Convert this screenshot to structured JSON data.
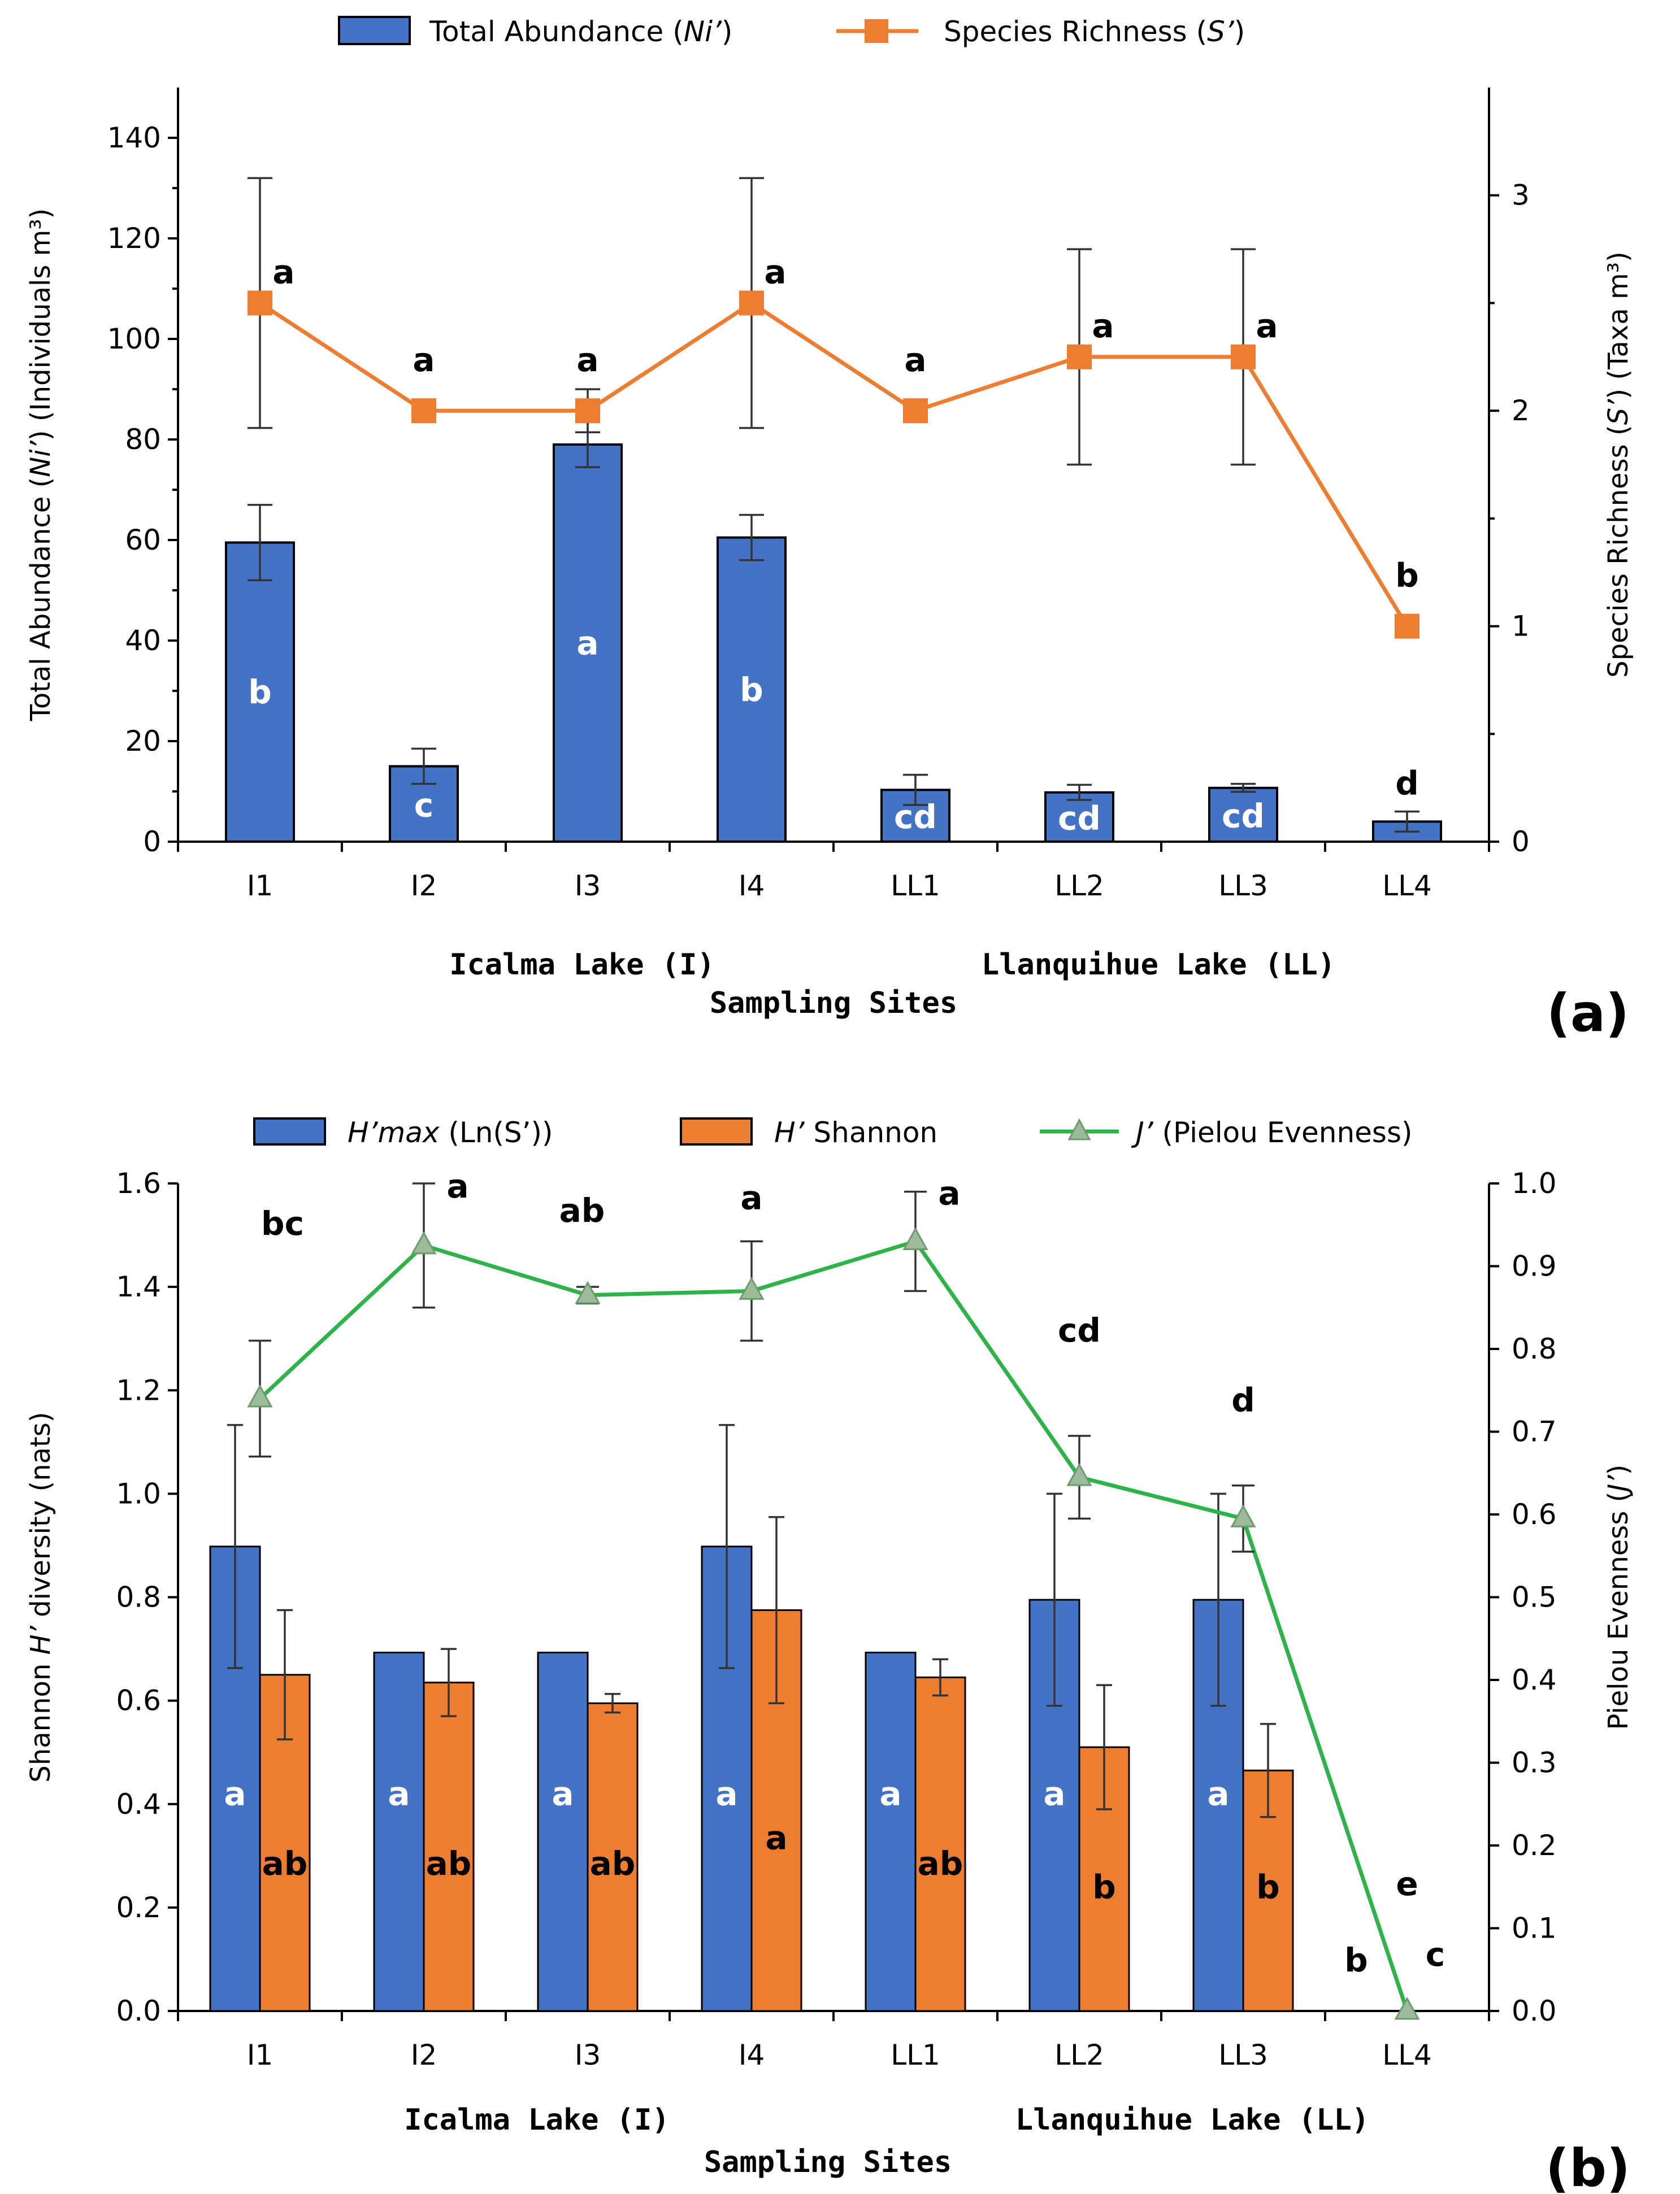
{
  "chart_data": [
    {
      "type": "bar+line",
      "panel_label": "(a)",
      "legend": [
        {
          "pre": "Total Abundance (",
          "it": "Ni’",
          "post": ")"
        },
        {
          "pre": "Species Richness (",
          "it": "S’",
          "post": ")"
        }
      ],
      "categories": [
        "I1",
        "I2",
        "I3",
        "I4",
        "LL1",
        "LL2",
        "LL3",
        "LL4"
      ],
      "group_labels": [
        "Icalma Lake (I)",
        "Llanquihue Lake (LL)"
      ],
      "xlabel": "Sampling Sites",
      "ylabel_left": {
        "pre": "Total Abundance (",
        "it": "Ni’",
        "post": ") (Individuals m³)"
      },
      "ylabel_right": {
        "pre": "Species Richness (",
        "it": "S’",
        "post": ") (Taxa m³)"
      },
      "ylim_left": [
        0,
        150
      ],
      "yticks_left": [
        0,
        20,
        40,
        60,
        80,
        100,
        120,
        140
      ],
      "ylim_right": [
        0,
        3.5
      ],
      "yticks_right": [
        0,
        1,
        2,
        3
      ],
      "bars": {
        "name": "Total Abundance (Ni’)",
        "color": "#4472C4",
        "values": [
          59.5,
          15,
          79,
          60.5,
          10.3,
          9.8,
          10.7,
          4
        ],
        "errors": [
          7.5,
          3.5,
          4.5,
          4.5,
          3,
          1.5,
          0.8,
          2
        ],
        "letters": [
          "b",
          "c",
          "a",
          "b",
          "cd",
          "cd",
          "cd",
          "d"
        ]
      },
      "line": {
        "name": "Species Richness (S’)",
        "color": "#ED7D31",
        "values": [
          2.5,
          2,
          2,
          2.5,
          2,
          2.25,
          2.25,
          1
        ],
        "errors": [
          0.58,
          0,
          0.1,
          0.58,
          0,
          0.5,
          0.5,
          0
        ],
        "letters": [
          "a",
          "a",
          "a",
          "a",
          "a",
          "a",
          "a",
          "b"
        ]
      }
    },
    {
      "type": "bar+line",
      "panel_label": "(b)",
      "legend": [
        {
          "pre": "",
          "it": "H’max",
          "post": " (Ln(S’))"
        },
        {
          "pre": "",
          "it": "H’",
          "post": " Shannon"
        },
        {
          "pre": "",
          "it": "J’",
          "post": "  (Pielou Evenness)"
        }
      ],
      "categories": [
        "I1",
        "I2",
        "I3",
        "I4",
        "LL1",
        "LL2",
        "LL3",
        "LL4"
      ],
      "group_labels": [
        "Icalma Lake (I)",
        "Llanquihue Lake (LL)"
      ],
      "xlabel": "Sampling Sites",
      "ylabel_left": {
        "pre": "Shannon ",
        "it": "H’",
        "post": " diversity (nats)"
      },
      "ylabel_right": {
        "pre": "Pielou Evenness (",
        "it": "J’",
        "post": ")"
      },
      "ylim_left": [
        0,
        1.6
      ],
      "yticks_left": [
        "0.0",
        "0.2",
        "0.4",
        "0.6",
        "0.8",
        "1.0",
        "1.2",
        "1.4",
        "1.6"
      ],
      "ylim_right": [
        0,
        1.0
      ],
      "yticks_right": [
        "0.0",
        "0.1",
        "0.2",
        "0.3",
        "0.4",
        "0.5",
        "0.6",
        "0.7",
        "0.8",
        "0.9",
        "1.0"
      ],
      "series": [
        {
          "name": "H’max (Ln(S’))",
          "color": "#4472C4",
          "values": [
            0.898,
            0.693,
            0.693,
            0.898,
            0.693,
            0.795,
            0.795,
            0
          ],
          "errors": [
            0.235,
            0,
            0,
            0.235,
            0,
            0.205,
            0.205,
            0
          ],
          "letters": [
            "a",
            "a",
            "a",
            "a",
            "a",
            "a",
            "a",
            "b"
          ]
        },
        {
          "name": "H’ Shannon",
          "color": "#ED7D31",
          "values": [
            0.65,
            0.635,
            0.595,
            0.775,
            0.645,
            0.51,
            0.465,
            0
          ],
          "errors": [
            0.125,
            0.065,
            0.018,
            0.18,
            0.035,
            0.12,
            0.09,
            0
          ],
          "letters": [
            "ab",
            "ab",
            "ab",
            "a",
            "ab",
            "b",
            "b",
            "c"
          ]
        }
      ],
      "line": {
        "name": "J’ (Pielou Evenness)",
        "color": "#2DB34A",
        "values": [
          0.74,
          0.925,
          0.865,
          0.87,
          0.93,
          0.645,
          0.595,
          0
        ],
        "errors": [
          0.07,
          0.075,
          0.01,
          0.06,
          0.06,
          0.05,
          0.04,
          0
        ],
        "letters": [
          "bc",
          "a",
          "ab",
          "a",
          "a",
          "cd",
          "d",
          "e"
        ]
      }
    }
  ]
}
